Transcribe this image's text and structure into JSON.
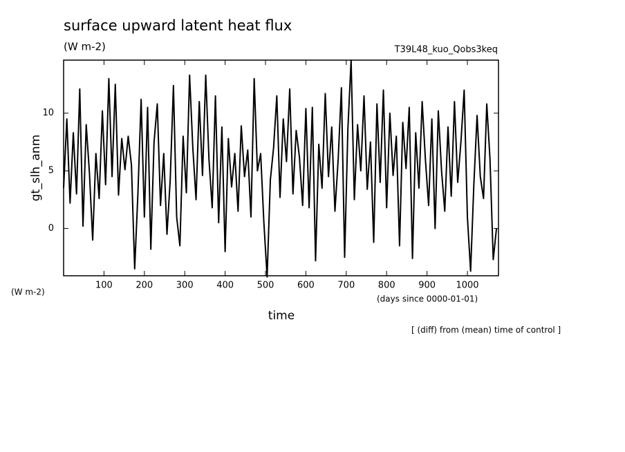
{
  "chart_data": {
    "type": "line",
    "title": "surface upward latent heat flux",
    "subtitle": "(W m-2)",
    "annotation_right": "T39L48_kuo_Qobs3keq",
    "y_label": "gt_slh_anm",
    "y_unit": "(W m-2)",
    "x_unit": "(days since 0000-01-01)",
    "x_label": "time",
    "footnote": "[ (diff) from (mean) time of control ]",
    "color": "#000000",
    "xlim": [
      0,
      1077
    ],
    "ylim": [
      -4.1,
      14.6
    ],
    "xticks": [
      100,
      200,
      300,
      400,
      500,
      600,
      700,
      800,
      900,
      1000
    ],
    "yticks": [
      0,
      5,
      10
    ],
    "x": [
      0,
      8,
      16,
      24,
      32,
      40,
      48,
      56,
      64,
      72,
      80,
      88,
      96,
      104,
      112,
      120,
      128,
      136,
      144,
      152,
      160,
      168,
      176,
      184,
      192,
      200,
      208,
      216,
      224,
      232,
      240,
      248,
      256,
      264,
      272,
      280,
      288,
      296,
      304,
      312,
      320,
      328,
      336,
      344,
      352,
      360,
      368,
      376,
      384,
      392,
      400,
      408,
      416,
      424,
      432,
      440,
      448,
      456,
      464,
      472,
      480,
      488,
      496,
      504,
      512,
      520,
      528,
      536,
      544,
      552,
      560,
      568,
      576,
      584,
      592,
      600,
      608,
      616,
      624,
      632,
      640,
      648,
      656,
      664,
      672,
      680,
      688,
      696,
      704,
      712,
      720,
      728,
      736,
      744,
      752,
      760,
      768,
      776,
      784,
      792,
      800,
      808,
      816,
      824,
      832,
      840,
      848,
      856,
      864,
      872,
      880,
      888,
      896,
      904,
      912,
      920,
      928,
      936,
      944,
      952,
      960,
      968,
      976,
      984,
      992,
      1000,
      1008,
      1016,
      1024,
      1032,
      1040,
      1048,
      1056,
      1064,
      1072
    ],
    "values": [
      3.5,
      9.5,
      2.2,
      8.3,
      3.0,
      12.1,
      0.2,
      9.0,
      4.8,
      -1.0,
      6.5,
      2.6,
      10.2,
      3.8,
      13.0,
      4.5,
      12.5,
      2.9,
      7.8,
      5.1,
      8.0,
      5.5,
      -3.5,
      3.0,
      11.2,
      1.0,
      10.5,
      -1.8,
      7.5,
      10.8,
      2.0,
      6.5,
      -0.5,
      4.2,
      12.4,
      1.0,
      -1.5,
      8.0,
      3.1,
      13.3,
      7.0,
      2.5,
      11.0,
      4.6,
      13.3,
      6.0,
      1.8,
      11.5,
      0.5,
      8.8,
      -2.0,
      7.8,
      3.6,
      6.5,
      1.5,
      8.9,
      4.5,
      6.8,
      1.0,
      13.0,
      5.0,
      6.5,
      0.5,
      -4.2,
      4.2,
      7.0,
      11.5,
      2.7,
      9.5,
      5.8,
      12.1,
      3.0,
      8.5,
      6.2,
      2.0,
      10.4,
      1.8,
      10.5,
      -2.8,
      7.3,
      3.5,
      11.7,
      4.5,
      8.8,
      1.5,
      6.0,
      12.2,
      -2.5,
      8.6,
      14.6,
      2.5,
      9.0,
      5.0,
      11.5,
      3.4,
      7.5,
      -1.2,
      10.8,
      4.0,
      12.0,
      1.8,
      10.0,
      4.6,
      8.0,
      -1.5,
      9.2,
      5.2,
      10.5,
      -2.6,
      8.3,
      3.5,
      11.0,
      6.0,
      2.0,
      9.5,
      0.0,
      10.2,
      5.0,
      1.5,
      8.8,
      2.8,
      11.0,
      4.0,
      7.5,
      12.0,
      1.0,
      -3.7,
      3.8,
      9.8,
      4.5,
      2.6,
      10.8,
      6.0,
      -2.7,
      0.0
    ]
  }
}
